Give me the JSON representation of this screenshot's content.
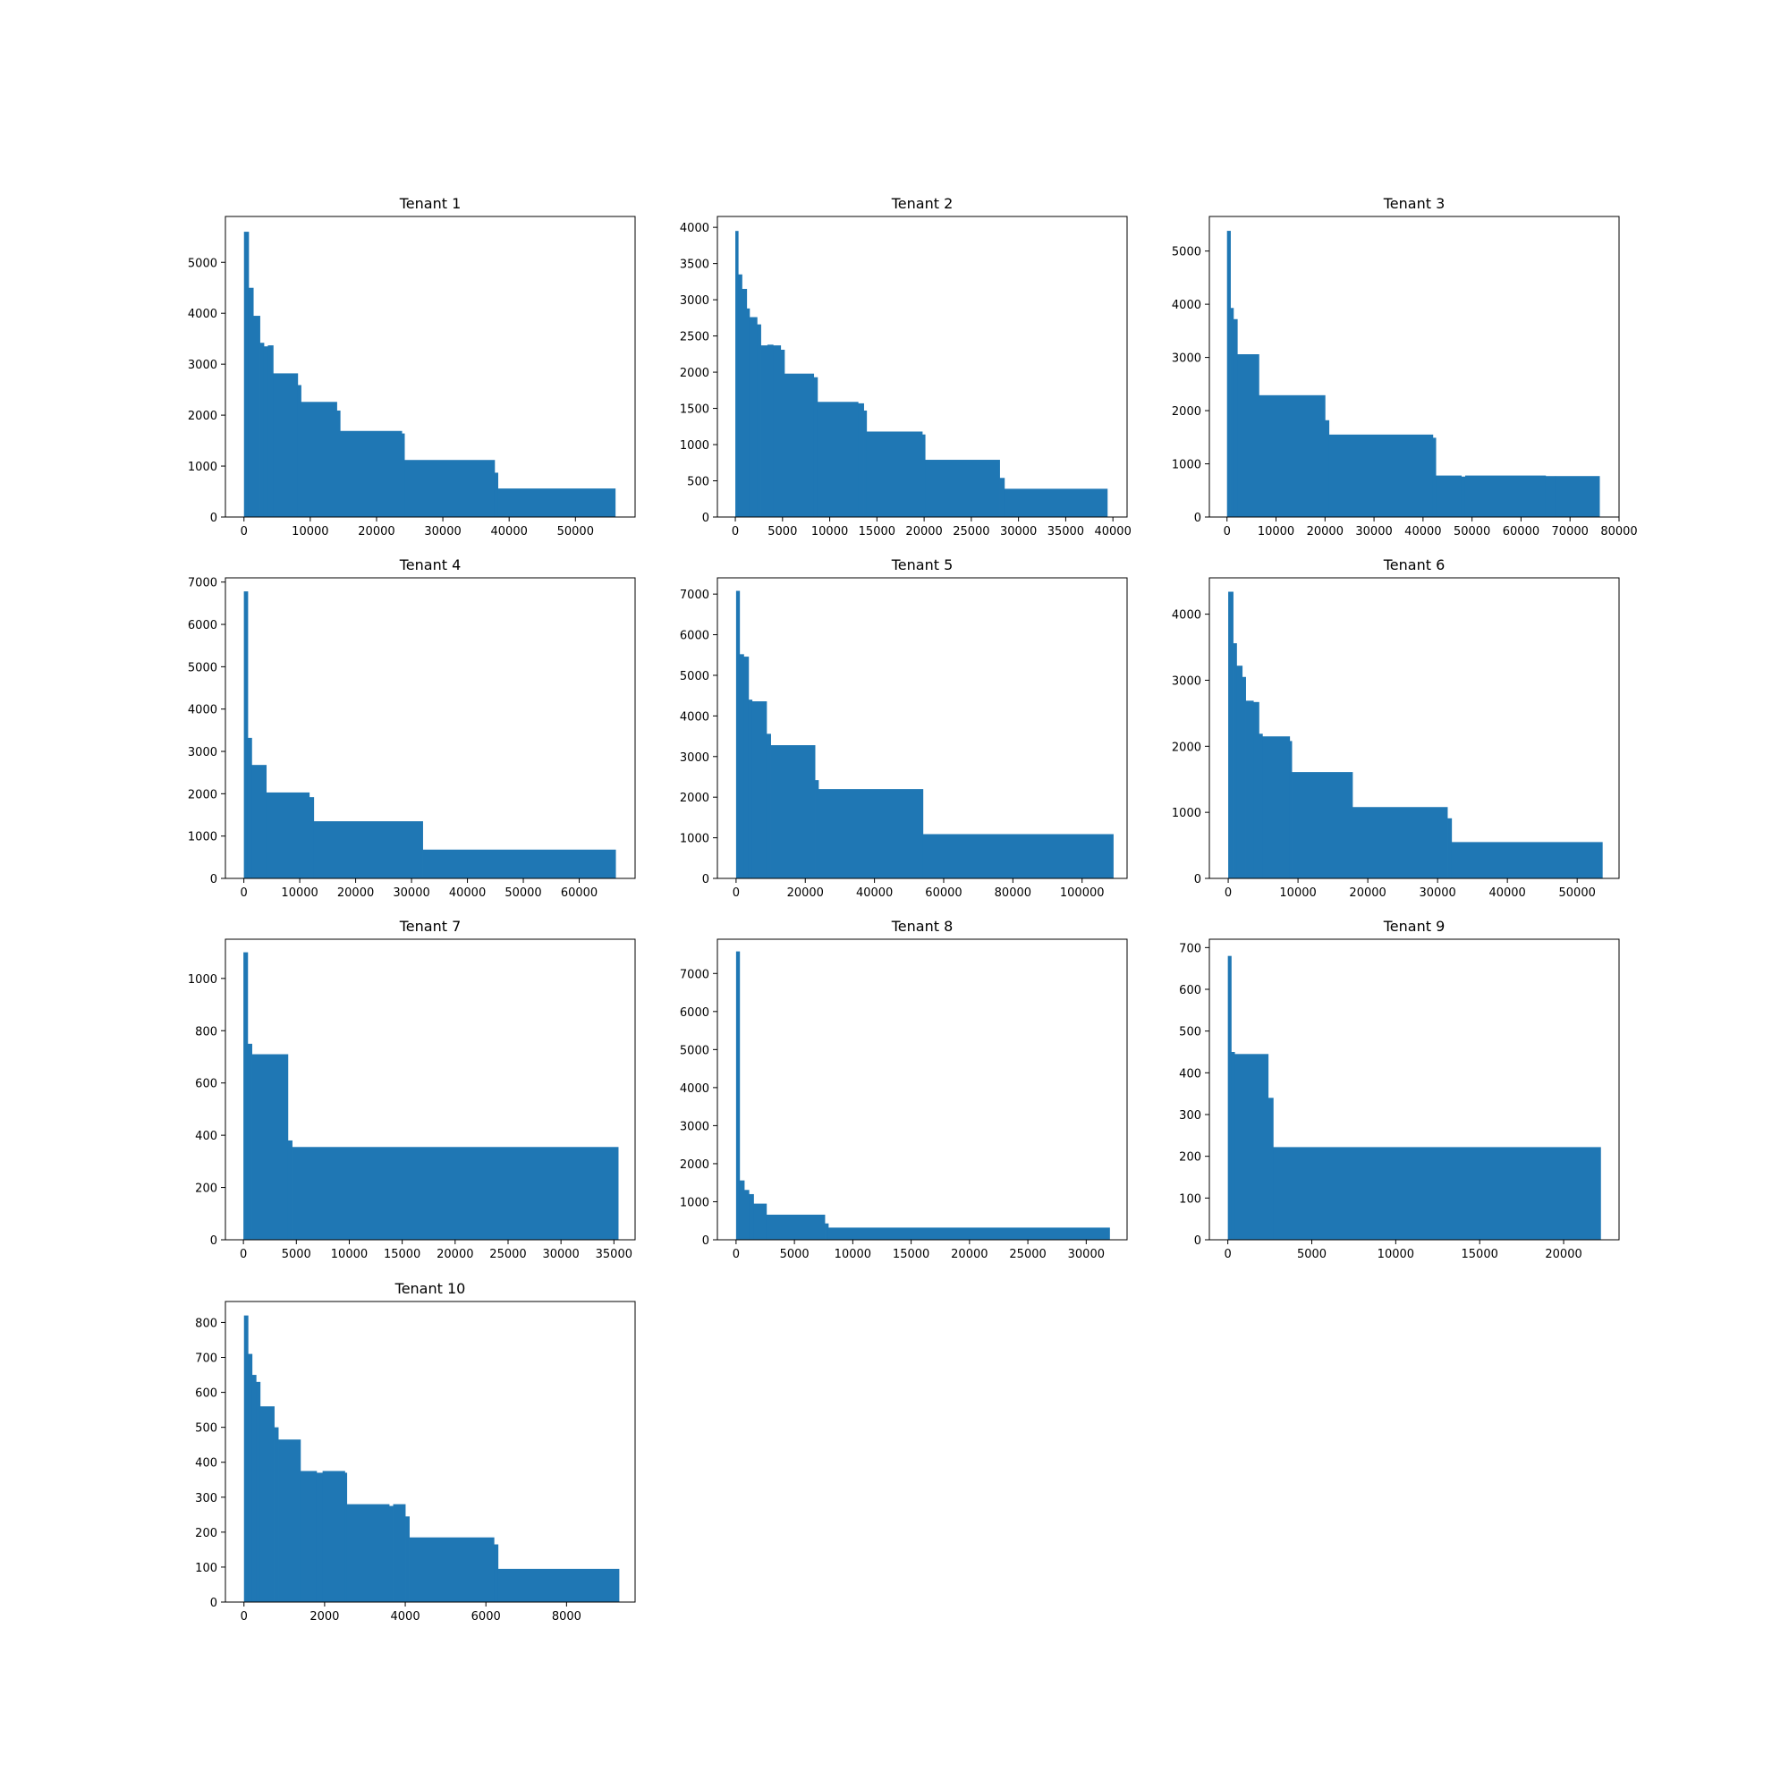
{
  "figure": {
    "bar_color": "#1f77b4"
  },
  "chart_data": [
    {
      "type": "bar",
      "title": "Tenant 1",
      "xlim": [
        -2800,
        59000
      ],
      "ylim": [
        0,
        5900
      ],
      "xticks": [
        0,
        10000,
        20000,
        30000,
        40000,
        50000
      ],
      "yticks": [
        0,
        1000,
        2000,
        3000,
        4000,
        5000
      ],
      "steps": [
        [
          0,
          5600
        ],
        [
          700,
          4500
        ],
        [
          1400,
          3950
        ],
        [
          2400,
          3420
        ],
        [
          3000,
          3350
        ],
        [
          3600,
          3370
        ],
        [
          4400,
          2820
        ],
        [
          8100,
          2590
        ],
        [
          8600,
          2260
        ],
        [
          14000,
          2090
        ],
        [
          14500,
          1690
        ],
        [
          23800,
          1640
        ],
        [
          24200,
          1120
        ],
        [
          37800,
          870
        ],
        [
          38300,
          560
        ],
        [
          56000,
          null
        ]
      ]
    },
    {
      "type": "bar",
      "title": "Tenant 2",
      "xlim": [
        -1900,
        41500
      ],
      "ylim": [
        0,
        4150
      ],
      "xticks": [
        0,
        5000,
        10000,
        15000,
        20000,
        25000,
        30000,
        35000,
        40000
      ],
      "yticks": [
        0,
        500,
        1000,
        1500,
        2000,
        2500,
        3000,
        3500,
        4000
      ],
      "steps": [
        [
          0,
          3950
        ],
        [
          300,
          3350
        ],
        [
          700,
          3150
        ],
        [
          1200,
          2880
        ],
        [
          1500,
          2760
        ],
        [
          2300,
          2660
        ],
        [
          2700,
          2370
        ],
        [
          3400,
          2380
        ],
        [
          4000,
          2370
        ],
        [
          4800,
          2310
        ],
        [
          5200,
          1980
        ],
        [
          8300,
          1930
        ],
        [
          8700,
          1590
        ],
        [
          13000,
          1570
        ],
        [
          13600,
          1470
        ],
        [
          13900,
          1180
        ],
        [
          19800,
          1140
        ],
        [
          20100,
          790
        ],
        [
          28000,
          540
        ],
        [
          28500,
          390
        ],
        [
          39400,
          null
        ]
      ]
    },
    {
      "type": "bar",
      "title": "Tenant 3",
      "xlim": [
        -3600,
        80000
      ],
      "ylim": [
        0,
        5650
      ],
      "xticks": [
        0,
        10000,
        20000,
        30000,
        40000,
        50000,
        60000,
        70000,
        80000
      ],
      "yticks": [
        0,
        1000,
        2000,
        3000,
        4000,
        5000
      ],
      "steps": [
        [
          0,
          5380
        ],
        [
          700,
          3930
        ],
        [
          1300,
          3720
        ],
        [
          2100,
          3060
        ],
        [
          6500,
          2290
        ],
        [
          20000,
          1820
        ],
        [
          20800,
          1550
        ],
        [
          42000,
          1490
        ],
        [
          42600,
          780
        ],
        [
          47800,
          760
        ],
        [
          48600,
          780
        ],
        [
          65000,
          770
        ],
        [
          67000,
          770
        ],
        [
          76000,
          null
        ]
      ]
    },
    {
      "type": "bar",
      "title": "Tenant 4",
      "xlim": [
        -3300,
        70000
      ],
      "ylim": [
        0,
        7100
      ],
      "xticks": [
        0,
        10000,
        20000,
        30000,
        40000,
        50000,
        60000
      ],
      "yticks": [
        0,
        1000,
        2000,
        3000,
        4000,
        5000,
        6000,
        7000
      ],
      "steps": [
        [
          0,
          6780
        ],
        [
          700,
          3320
        ],
        [
          1400,
          2680
        ],
        [
          4000,
          2030
        ],
        [
          11700,
          1920
        ],
        [
          12500,
          1350
        ],
        [
          32000,
          680
        ],
        [
          66500,
          null
        ]
      ]
    },
    {
      "type": "bar",
      "title": "Tenant 5",
      "xlim": [
        -5400,
        113000
      ],
      "ylim": [
        0,
        7400
      ],
      "xticks": [
        0,
        20000,
        40000,
        60000,
        80000,
        100000
      ],
      "yticks": [
        0,
        1000,
        2000,
        3000,
        4000,
        5000,
        6000,
        7000
      ],
      "steps": [
        [
          0,
          7080
        ],
        [
          1000,
          5520
        ],
        [
          2200,
          5460
        ],
        [
          3600,
          4400
        ],
        [
          4600,
          4360
        ],
        [
          8800,
          3560
        ],
        [
          10000,
          3280
        ],
        [
          22800,
          2420
        ],
        [
          23800,
          2200
        ],
        [
          54000,
          1090
        ],
        [
          109000,
          null
        ]
      ]
    },
    {
      "type": "bar",
      "title": "Tenant 6",
      "xlim": [
        -2700,
        56000
      ],
      "ylim": [
        0,
        4550
      ],
      "xticks": [
        0,
        10000,
        20000,
        30000,
        40000,
        50000
      ],
      "yticks": [
        0,
        1000,
        2000,
        3000,
        4000
      ],
      "steps": [
        [
          0,
          4340
        ],
        [
          700,
          3560
        ],
        [
          1200,
          3220
        ],
        [
          2000,
          3050
        ],
        [
          2500,
          2690
        ],
        [
          3600,
          2670
        ],
        [
          4400,
          2190
        ],
        [
          4900,
          2150
        ],
        [
          8800,
          2080
        ],
        [
          9100,
          1610
        ],
        [
          17800,
          1080
        ],
        [
          31400,
          910
        ],
        [
          32000,
          550
        ],
        [
          53600,
          null
        ]
      ]
    },
    {
      "type": "bar",
      "title": "Tenant 7",
      "xlim": [
        -1700,
        37000
      ],
      "ylim": [
        0,
        1150
      ],
      "xticks": [
        0,
        5000,
        10000,
        15000,
        20000,
        25000,
        30000,
        35000
      ],
      "yticks": [
        0,
        200,
        400,
        600,
        800,
        1000
      ],
      "steps": [
        [
          0,
          1100
        ],
        [
          400,
          750
        ],
        [
          800,
          710
        ],
        [
          4200,
          380
        ],
        [
          4600,
          355
        ],
        [
          35400,
          null
        ]
      ]
    },
    {
      "type": "bar",
      "title": "Tenant 8",
      "xlim": [
        -1600,
        33500
      ],
      "ylim": [
        0,
        7900
      ],
      "xticks": [
        0,
        5000,
        10000,
        15000,
        20000,
        25000,
        30000
      ],
      "yticks": [
        0,
        1000,
        2000,
        3000,
        4000,
        5000,
        6000,
        7000
      ],
      "steps": [
        [
          0,
          7580
        ],
        [
          300,
          1560
        ],
        [
          700,
          1310
        ],
        [
          1100,
          1200
        ],
        [
          1500,
          950
        ],
        [
          2600,
          660
        ],
        [
          7600,
          430
        ],
        [
          7900,
          320
        ],
        [
          32000,
          null
        ]
      ]
    },
    {
      "type": "bar",
      "title": "Tenant 9",
      "xlim": [
        -1100,
        23300
      ],
      "ylim": [
        0,
        720
      ],
      "xticks": [
        0,
        5000,
        10000,
        15000,
        20000
      ],
      "yticks": [
        0,
        100,
        200,
        300,
        400,
        500,
        600,
        700
      ],
      "steps": [
        [
          0,
          680
        ],
        [
          200,
          450
        ],
        [
          400,
          445
        ],
        [
          2400,
          340
        ],
        [
          2700,
          222
        ],
        [
          22200,
          null
        ]
      ]
    },
    {
      "type": "bar",
      "title": "Tenant 10",
      "xlim": [
        -460,
        9700
      ],
      "ylim": [
        0,
        860
      ],
      "xticks": [
        0,
        2000,
        4000,
        6000,
        8000
      ],
      "yticks": [
        0,
        100,
        200,
        300,
        400,
        500,
        600,
        700,
        800
      ],
      "steps": [
        [
          0,
          820
        ],
        [
          100,
          710
        ],
        [
          200,
          650
        ],
        [
          300,
          630
        ],
        [
          400,
          560
        ],
        [
          750,
          500
        ],
        [
          850,
          465
        ],
        [
          1400,
          375
        ],
        [
          1800,
          370
        ],
        [
          1950,
          375
        ],
        [
          2500,
          370
        ],
        [
          2550,
          280
        ],
        [
          3600,
          275
        ],
        [
          3700,
          280
        ],
        [
          4000,
          245
        ],
        [
          4100,
          185
        ],
        [
          6200,
          165
        ],
        [
          6300,
          95
        ],
        [
          9300,
          null
        ]
      ]
    }
  ]
}
